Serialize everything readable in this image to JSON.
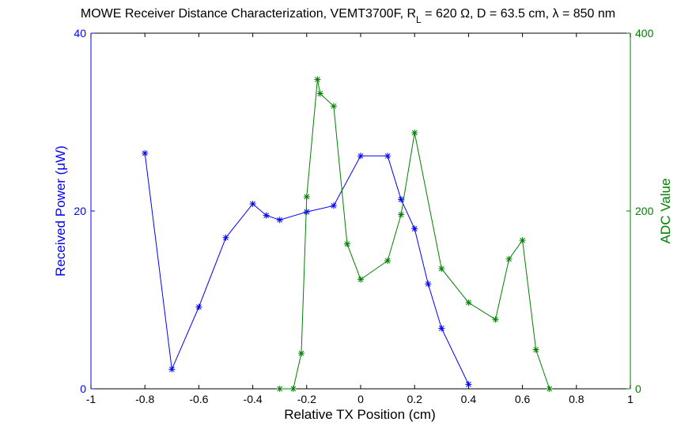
{
  "chart_data": {
    "type": "line",
    "title": "MOWE Receiver Distance Characterization, VEMT3700F, R",
    "title_sub": "L",
    "title_rest": " = 620 Ω, D = 63.5 cm, λ = 850 nm",
    "xlabel": "Relative TX Position (cm)",
    "ylabel_left": "Received Power (μW)",
    "ylabel_right": "ADC Value",
    "xlim": [
      -1,
      1
    ],
    "ylim_left": [
      0,
      40
    ],
    "ylim_right": [
      0,
      400
    ],
    "x_ticks": [
      "-1",
      "-0.8",
      "-0.6",
      "-0.4",
      "-0.2",
      "0",
      "0.2",
      "0.4",
      "0.6",
      "0.8",
      "1"
    ],
    "y_ticks_left": [
      "0",
      "20",
      "40"
    ],
    "y_ticks_right": [
      "0",
      "200",
      "400"
    ],
    "grid": false,
    "colors": {
      "left": "#0000ff",
      "right": "#008000",
      "axes": "#000000"
    },
    "series": [
      {
        "axis": "left",
        "marker": "*",
        "x": [
          -0.8,
          -0.7,
          -0.6,
          -0.5,
          -0.4,
          -0.35,
          -0.3,
          -0.2,
          -0.1,
          0,
          0.1,
          0.15,
          0.2,
          0.25,
          0.3,
          0.4
        ],
        "values": [
          26.5,
          2.2,
          9.2,
          17.0,
          20.8,
          19.5,
          19.0,
          19.9,
          20.6,
          26.2,
          26.2,
          21.3,
          18.0,
          11.8,
          6.8,
          0.5
        ]
      },
      {
        "axis": "right",
        "marker": "*",
        "x": [
          -0.3,
          -0.25,
          -0.22,
          -0.2,
          -0.16,
          -0.15,
          -0.1,
          -0.05,
          0,
          0.1,
          0.15,
          0.2,
          0.3,
          0.4,
          0.5,
          0.55,
          0.6,
          0.65,
          0.7
        ],
        "values": [
          0,
          0,
          40,
          216,
          348,
          332,
          318,
          163,
          123,
          144,
          196,
          288,
          135,
          97,
          78,
          146,
          167,
          44,
          0
        ]
      }
    ]
  }
}
